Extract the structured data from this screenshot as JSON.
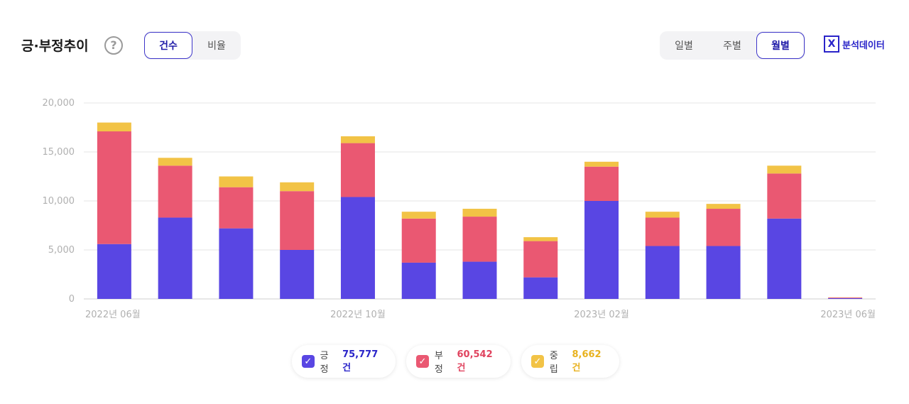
{
  "header": {
    "title": "긍·부정추이",
    "help": "?",
    "measure_tabs": [
      {
        "label": "건수",
        "active": true
      },
      {
        "label": "비율",
        "active": false
      }
    ],
    "period_tabs": [
      {
        "label": "일별",
        "active": false
      },
      {
        "label": "주별",
        "active": false
      },
      {
        "label": "월별",
        "active": true
      }
    ],
    "export_label": "분석데이터",
    "export_icon": "excel-icon"
  },
  "colors": {
    "positive": "#5946e3",
    "negative": "#ea5872",
    "neutral": "#f2c346",
    "accent": "#2a24c9"
  },
  "chart_data": {
    "type": "bar",
    "stacked": true,
    "categories": [
      "2022년 06월",
      "",
      "",
      "",
      "2022년 10월",
      "",
      "",
      "",
      "2023년 02월",
      "",
      "",
      "",
      "2023년 06월"
    ],
    "series": [
      {
        "name": "긍정",
        "values": [
          5600,
          8300,
          7200,
          5000,
          10400,
          3700,
          3800,
          2200,
          10000,
          5400,
          5400,
          8200,
          80
        ]
      },
      {
        "name": "부정",
        "values": [
          11500,
          5300,
          4200,
          6000,
          5500,
          4500,
          4600,
          3700,
          3500,
          2900,
          3800,
          4600,
          60
        ]
      },
      {
        "name": "중립",
        "values": [
          900,
          800,
          1100,
          900,
          700,
          700,
          800,
          400,
          500,
          600,
          500,
          800,
          20
        ]
      }
    ],
    "ylim": [
      0,
      20000
    ],
    "yticks": [
      "0",
      "5,000",
      "10,000",
      "15,000",
      "20,000"
    ],
    "grid": true
  },
  "legend": [
    {
      "label": "긍정",
      "value": "75,777건"
    },
    {
      "label": "부정",
      "value": "60,542건"
    },
    {
      "label": "중립",
      "value": "8,662건"
    }
  ]
}
